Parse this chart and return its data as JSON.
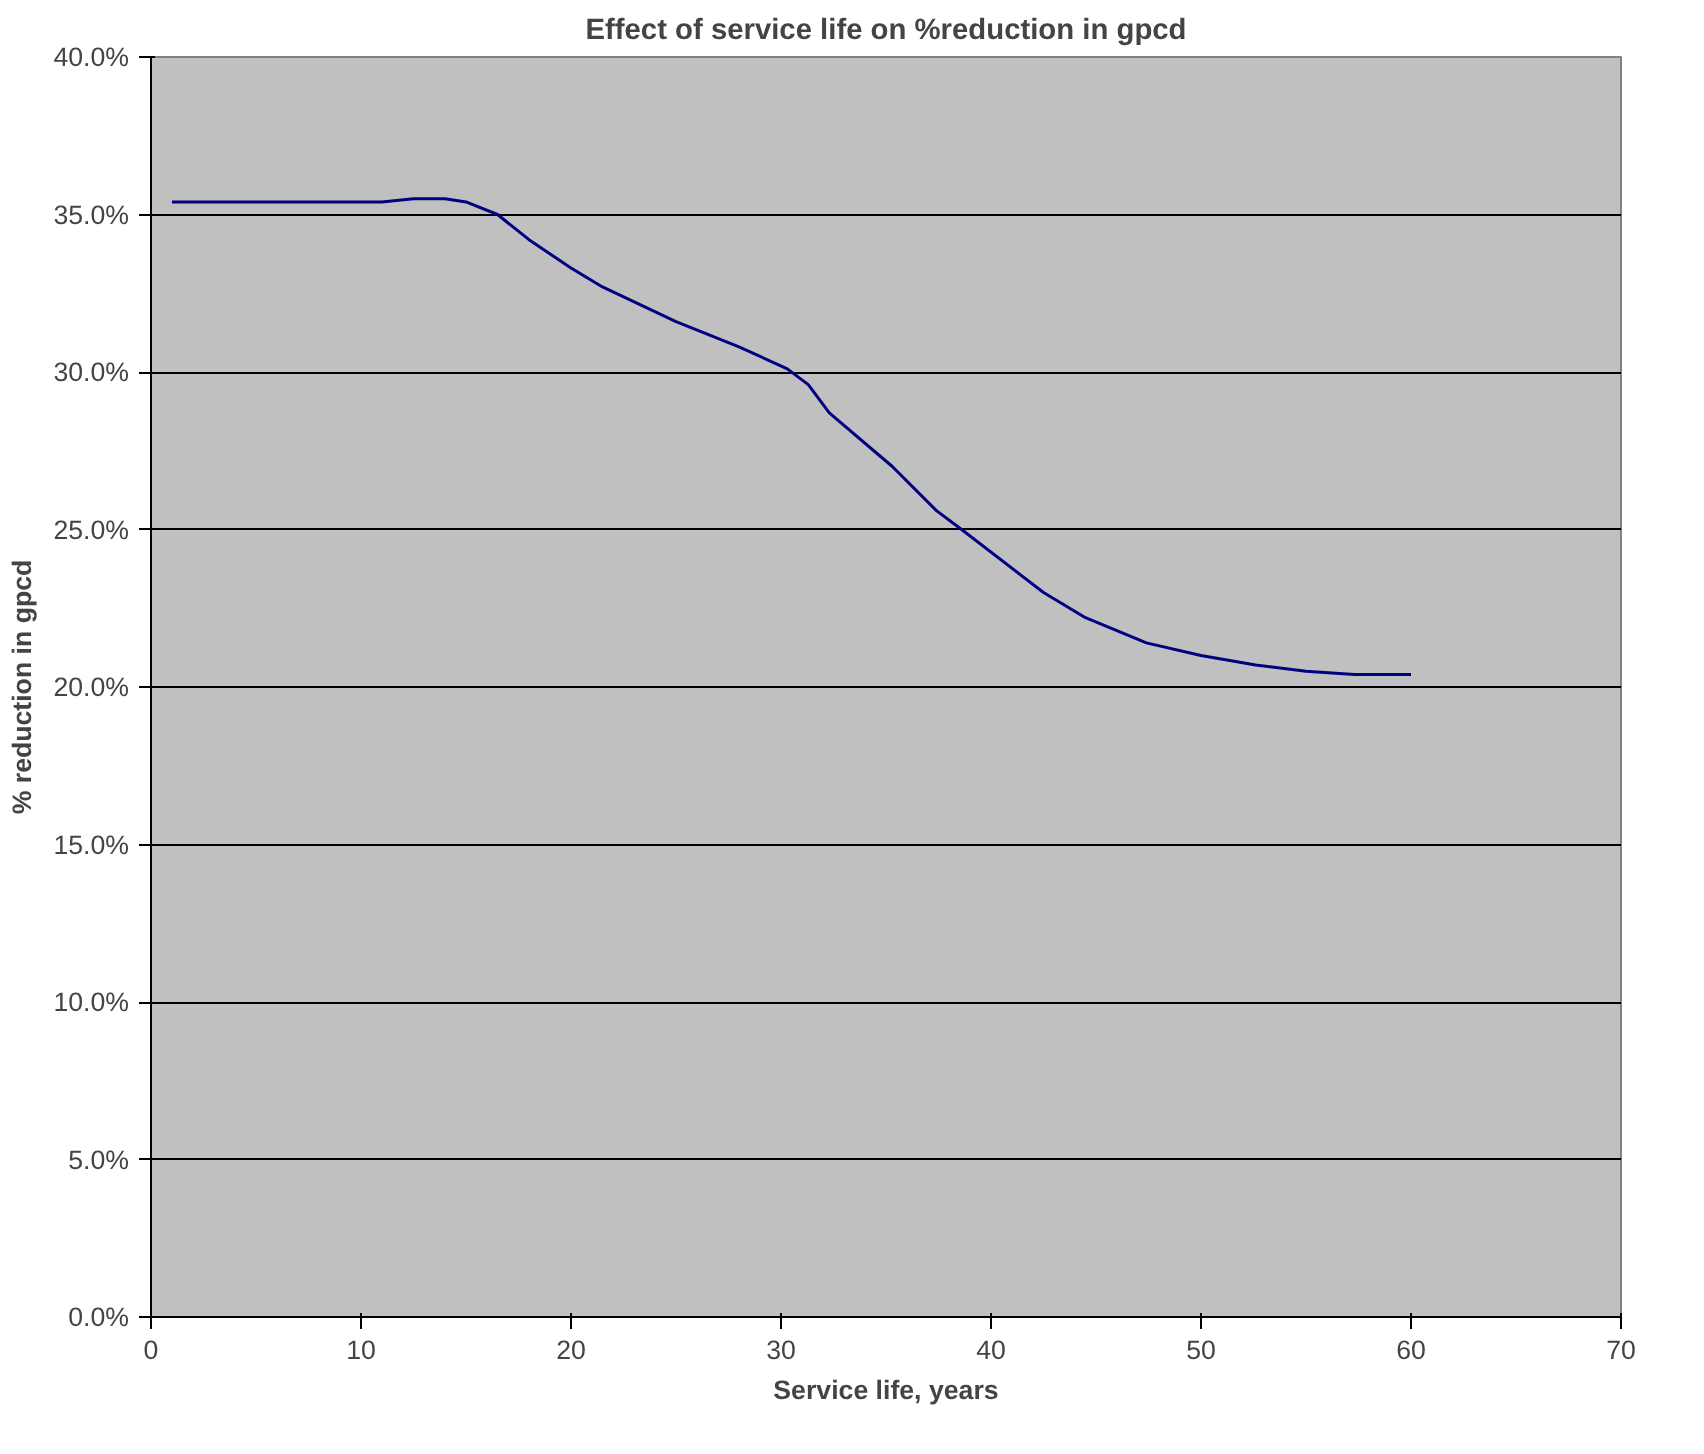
{
  "chart_data": {
    "type": "line",
    "title": "Effect of service life on %reduction in gpcd",
    "xlabel": "Service life, years",
    "ylabel": "% reduction in gpcd",
    "x": [
      1,
      5,
      11,
      12.5,
      14,
      15,
      16.5,
      18,
      20,
      21.5,
      25,
      28,
      30.3,
      31.3,
      32.3,
      35.3,
      37.4,
      38.6,
      42.5,
      44.5,
      47.4,
      50,
      52.6,
      55,
      57.3,
      60
    ],
    "series": [
      {
        "color": "#000080",
        "values": [
          35.4,
          35.4,
          35.4,
          35.5,
          35.5,
          35.4,
          35.0,
          34.2,
          33.3,
          32.7,
          31.6,
          30.8,
          30.1,
          29.6,
          28.7,
          27.0,
          25.6,
          25.0,
          23.0,
          22.2,
          21.4,
          21.0,
          20.7,
          20.5,
          20.4,
          20.4
        ]
      }
    ],
    "xlim": [
      0,
      70
    ],
    "xticks": [
      0,
      10,
      20,
      30,
      40,
      50,
      60,
      70
    ],
    "ylim": [
      0,
      40
    ],
    "yticks": [
      {
        "value": 0,
        "label": "0.0%"
      },
      {
        "value": 5,
        "label": "5.0%"
      },
      {
        "value": 10,
        "label": "10.0%"
      },
      {
        "value": 15,
        "label": "15.0%"
      },
      {
        "value": 20,
        "label": "20.0%"
      },
      {
        "value": 25,
        "label": "25.0%"
      },
      {
        "value": 30,
        "label": "30.0%"
      },
      {
        "value": 35,
        "label": "35.0%"
      },
      {
        "value": 40,
        "label": "40.0%"
      }
    ],
    "grid": "y",
    "marker": "none",
    "line_style": "solid"
  }
}
